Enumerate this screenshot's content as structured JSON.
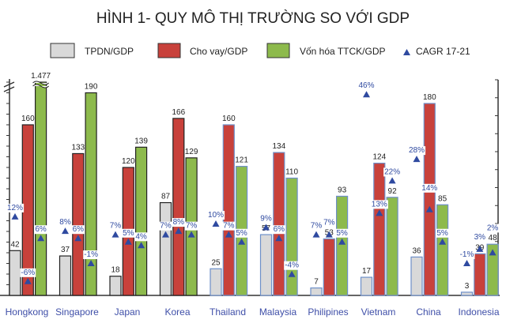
{
  "chart_data": {
    "type": "bar",
    "title": "HÌNH 1- QUY MÔ THỊ TRƯỜNG SO VỚI GDP",
    "categories": [
      "Hongkong",
      "Singapore",
      "Japan",
      "Korea",
      "Thailand",
      "Malaysia",
      "Philipines",
      "Vietnam",
      "China",
      "Indonesia"
    ],
    "series": [
      {
        "name": "TPDN/GDP",
        "color": "#d9d9d9",
        "values": [
          42,
          37,
          18,
          87,
          25,
          57,
          7,
          17,
          36,
          3
        ],
        "labels": [
          "42",
          "37",
          "18",
          "87",
          "25",
          "57",
          "7",
          "17",
          "36",
          "3"
        ]
      },
      {
        "name": "Cho vay/GDP",
        "color": "#c8413b",
        "values": [
          160,
          133,
          120,
          166,
          160,
          134,
          53,
          124,
          180,
          39
        ],
        "labels": [
          "160",
          "133",
          "120",
          "166",
          "160",
          "134",
          "53",
          "124",
          "180",
          "39"
        ]
      },
      {
        "name": "Vốn hóa TTCK/GDP",
        "color": "#8dba4c",
        "values": [
          1477,
          190,
          139,
          129,
          121,
          110,
          93,
          92,
          85,
          48
        ],
        "labels": [
          "1.477",
          "190",
          "139",
          "129",
          "121",
          "110",
          "93",
          "92",
          "85",
          "48"
        ]
      }
    ],
    "cagr": {
      "name": "CAGR 17-21",
      "color": "#2f4aa0",
      "unit": "%",
      "values": [
        [
          12,
          -6,
          6
        ],
        [
          8,
          6,
          -1
        ],
        [
          7,
          5,
          4
        ],
        [
          7,
          8,
          7
        ],
        [
          10,
          7,
          5
        ],
        [
          9,
          6,
          -4
        ],
        [
          7,
          7,
          5
        ],
        [
          46,
          13,
          22
        ],
        [
          28,
          14,
          5
        ],
        [
          -1,
          3,
          2
        ]
      ],
      "labels": [
        [
          "12%",
          "-6%",
          "6%"
        ],
        [
          "8%",
          "6%",
          "-1%"
        ],
        [
          "7%",
          "5%",
          "4%"
        ],
        [
          "7%",
          "8%",
          "7%"
        ],
        [
          "10%",
          "7%",
          "5%"
        ],
        [
          "9%",
          "6%",
          "-4%"
        ],
        [
          "7%",
          "7%",
          "5%"
        ],
        [
          "46%",
          "13%",
          "22%"
        ],
        [
          "28%",
          "14%",
          "5%"
        ],
        [
          "-1%",
          "3%",
          "2%"
        ]
      ]
    },
    "left_axis": {
      "range": [
        0,
        200
      ],
      "broken": true,
      "tick_labels_shown": false
    },
    "right_axis": {
      "range": [
        -10,
        50
      ],
      "unit": "%",
      "tick_labels_shown": false
    },
    "legend": {
      "placement": "top",
      "items": [
        "TPDN/GDP",
        "Cho vay/GDP",
        "Vốn hóa TTCK/GDP",
        "CAGR 17-21"
      ]
    },
    "category_label_color": "#3f4fa8",
    "grid": false
  }
}
